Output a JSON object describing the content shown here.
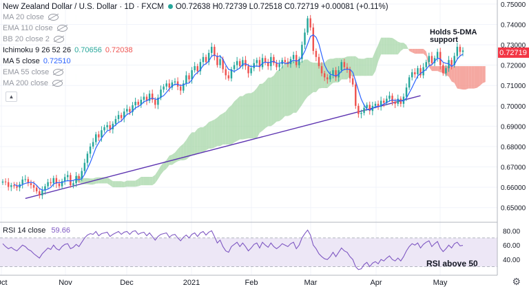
{
  "header": {
    "symbol": "New Zealand Dollar / U.S. Dollar · 1D · FXCM",
    "ohlc": "O0.72638 H0.72739 L0.72518 C0.72719 +0.00081 (+0.11%)"
  },
  "indicators": [
    {
      "label": "MA 20 close",
      "values": [],
      "hidden": true
    },
    {
      "label": "EMA 110 close",
      "values": [],
      "hidden": true
    },
    {
      "label": "BB 20 close 2",
      "values": [],
      "hidden": true
    },
    {
      "label": "Ichimoku 9 26 52 26",
      "values": [
        "0.70656",
        "0.72038"
      ],
      "hidden": false
    },
    {
      "label": "MA 5 close",
      "values": [
        "0.72510"
      ],
      "hidden": false
    },
    {
      "label": "EMA 55 close",
      "values": [],
      "hidden": true
    },
    {
      "label": "MA 200 close",
      "values": [],
      "hidden": true
    }
  ],
  "colors": {
    "up": "#26a69a",
    "down": "#ef5350",
    "ma5": "#2962ff",
    "kumo_bull": "#a5d6a7",
    "kumo_bear": "#f28b82",
    "trendline": "#5e35b1",
    "rsi": "#7e57c2",
    "rsi_band": "#ede7f6",
    "last_price": "#f23645"
  },
  "annotations": {
    "support": "Holds 5-DMA support",
    "rsi": "RSI above 50"
  },
  "rsi_legend": {
    "label": "RSI 14 close",
    "value": "59.66"
  },
  "last_price_label": "0.72719",
  "chart_data": [
    {
      "type": "candlestick",
      "title": "New Zealand Dollar / U.S. Dollar · 1D · FXCM",
      "x_labels": [
        "Oct",
        "Nov",
        "Dec",
        "2021",
        "Feb",
        "Mar",
        "Apr",
        "May"
      ],
      "y_ticks": [
        "0.75000",
        "0.74000",
        "0.73000",
        "0.72000",
        "0.71000",
        "0.70000",
        "0.69000",
        "0.68000",
        "0.67000",
        "0.66000",
        "0.65000"
      ],
      "ylim": [
        0.65,
        0.75
      ],
      "close": [
        0.6628,
        0.6625,
        0.6602,
        0.661,
        0.6605,
        0.6598,
        0.6615,
        0.6638,
        0.664,
        0.662,
        0.6611,
        0.6598,
        0.658,
        0.656,
        0.6585,
        0.6605,
        0.6625,
        0.662,
        0.6645,
        0.6618,
        0.6605,
        0.663,
        0.665,
        0.666,
        0.661,
        0.662,
        0.6655,
        0.6642,
        0.668,
        0.672,
        0.6765,
        0.68,
        0.6822,
        0.686,
        0.6845,
        0.688,
        0.6895,
        0.6905,
        0.6885,
        0.6912,
        0.6935,
        0.6955,
        0.694,
        0.6972,
        0.6985,
        0.697,
        0.7003,
        0.702,
        0.7005,
        0.703,
        0.7045,
        0.7025,
        0.706,
        0.703,
        0.7005,
        0.704,
        0.708,
        0.7095,
        0.711,
        0.709,
        0.7115,
        0.712,
        0.7095,
        0.7075,
        0.711,
        0.715,
        0.713,
        0.7175,
        0.7195,
        0.717,
        0.7215,
        0.724,
        0.7215,
        0.726,
        0.729,
        0.7245,
        0.72,
        0.723,
        0.718,
        0.715,
        0.7135,
        0.718,
        0.72,
        0.722,
        0.7195,
        0.7225,
        0.7195,
        0.716,
        0.7185,
        0.721,
        0.7225,
        0.719,
        0.7235,
        0.7215,
        0.7195,
        0.724,
        0.721,
        0.719,
        0.7205,
        0.7225,
        0.7215,
        0.7205,
        0.723,
        0.725,
        0.72,
        0.723,
        0.73,
        0.736,
        0.743,
        0.7385,
        0.727,
        0.724,
        0.7195,
        0.716,
        0.714,
        0.713,
        0.715,
        0.7175,
        0.714,
        0.7175,
        0.7215,
        0.719,
        0.718,
        0.7135,
        0.7105,
        0.7,
        0.696,
        0.6965,
        0.699,
        0.7005,
        0.6975,
        0.7,
        0.701,
        0.6995,
        0.7025,
        0.7015,
        0.7035,
        0.705,
        0.702,
        0.701,
        0.7035,
        0.701,
        0.7045,
        0.709,
        0.714,
        0.7165,
        0.7155,
        0.7185,
        0.715,
        0.719,
        0.7215,
        0.7245,
        0.721,
        0.7235,
        0.7265,
        0.72,
        0.716,
        0.7185,
        0.7225,
        0.72,
        0.7245,
        0.729,
        0.7265,
        0.7272
      ],
      "ma5_last": 0.7251,
      "ichimoku_values": [
        0.70656,
        0.72038
      ],
      "trendline": {
        "x": [
          8,
          148
        ],
        "y": [
          0.6545,
          0.705
        ]
      }
    },
    {
      "type": "line",
      "title": "RSI 14 close",
      "values": [
        62,
        58,
        55,
        57,
        54,
        52,
        56,
        60,
        58,
        54,
        52,
        48,
        45,
        42,
        48,
        52,
        56,
        54,
        60,
        55,
        53,
        58,
        61,
        62,
        55,
        57,
        61,
        58,
        64,
        70,
        74,
        76,
        75,
        79,
        73,
        76,
        77,
        78,
        72,
        75,
        77,
        79,
        75,
        78,
        79,
        75,
        79,
        80,
        75,
        77,
        78,
        73,
        77,
        72,
        67,
        72,
        75,
        76,
        77,
        71,
        74,
        75,
        70,
        66,
        71,
        74,
        70,
        75,
        77,
        72,
        77,
        79,
        74,
        78,
        80,
        72,
        63,
        67,
        58,
        52,
        50,
        58,
        61,
        64,
        58,
        63,
        58,
        52,
        56,
        61,
        63,
        56,
        64,
        60,
        57,
        63,
        58,
        55,
        58,
        62,
        60,
        58,
        62,
        64,
        55,
        60,
        70,
        76,
        81,
        74,
        60,
        55,
        48,
        44,
        41,
        40,
        44,
        50,
        44,
        50,
        56,
        52,
        50,
        44,
        40,
        30,
        26,
        27,
        33,
        36,
        30,
        35,
        37,
        34,
        40,
        38,
        42,
        45,
        40,
        38,
        42,
        38,
        44,
        52,
        58,
        62,
        60,
        63,
        56,
        61,
        64,
        66,
        58,
        62,
        65,
        56,
        51,
        55,
        60,
        56,
        62,
        64,
        59,
        59.66
      ],
      "ylim": [
        20,
        88
      ],
      "y_ticks": [
        "80.00",
        "60.00",
        "40.00"
      ],
      "band": [
        30,
        70
      ]
    }
  ]
}
